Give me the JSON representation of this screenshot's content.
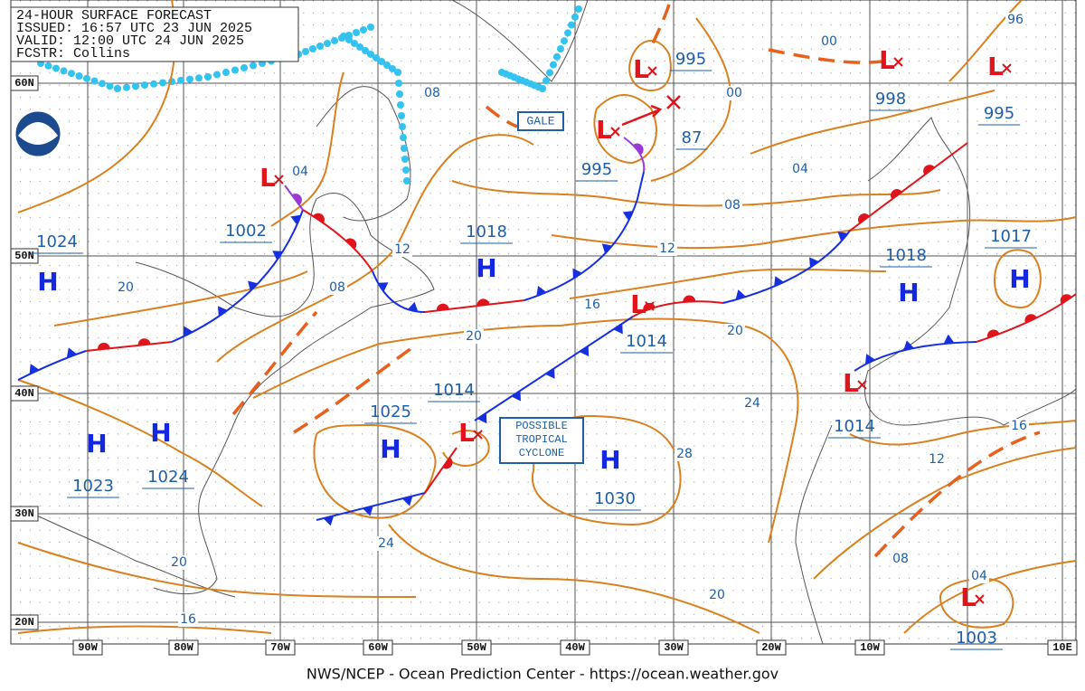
{
  "header": {
    "lines": [
      "24-HOUR SURFACE FORECAST",
      "ISSUED: 16:57 UTC 23 JUN 2025",
      "VALID: 12:00 UTC 24 JUN 2025",
      "FCSTR: Collins"
    ]
  },
  "latitude_labels": [
    "60N",
    "50N",
    "40N",
    "30N",
    "20N"
  ],
  "longitude_labels": [
    "90W",
    "80W",
    "70W",
    "60W",
    "50W",
    "40W",
    "30W",
    "20W",
    "10W",
    "10E"
  ],
  "highs": [
    {
      "symbol": "H",
      "pressure": "1024"
    },
    {
      "symbol": "H",
      "pressure": "1023"
    },
    {
      "symbol": "H",
      "pressure": "1024"
    },
    {
      "symbol": "H",
      "pressure": "1018"
    },
    {
      "symbol": "H",
      "pressure": "1025"
    },
    {
      "symbol": "H",
      "pressure": "1030"
    },
    {
      "symbol": "H",
      "pressure": "1018"
    },
    {
      "symbol": "H",
      "pressure": "1017"
    }
  ],
  "lows": [
    {
      "symbol": "L",
      "pressure": "1002"
    },
    {
      "symbol": "L",
      "pressure": "995"
    },
    {
      "symbol": "L",
      "pressure": "995"
    },
    {
      "symbol": "L",
      "pressure": "1014"
    },
    {
      "symbol": "L",
      "pressure": "1014"
    },
    {
      "symbol": "L",
      "pressure": "1014"
    },
    {
      "symbol": "L",
      "pressure": "998"
    },
    {
      "symbol": "L",
      "pressure": "995"
    },
    {
      "symbol": "L",
      "pressure": "1003"
    }
  ],
  "dissipating_low": {
    "pressure": "87"
  },
  "isobar_labels": [
    "04",
    "08",
    "00",
    "96",
    "00",
    "04",
    "08",
    "12",
    "12",
    "08",
    "20",
    "16",
    "20",
    "20",
    "24",
    "28",
    "16",
    "12",
    "08",
    "04",
    "24",
    "20",
    "16",
    "20"
  ],
  "boxes": [
    "GALE",
    "POSSIBLE TROPICAL CYCLONE"
  ],
  "footer": "NWS/NCEP - Ocean Prediction Center - https://ocean.weather.gov"
}
